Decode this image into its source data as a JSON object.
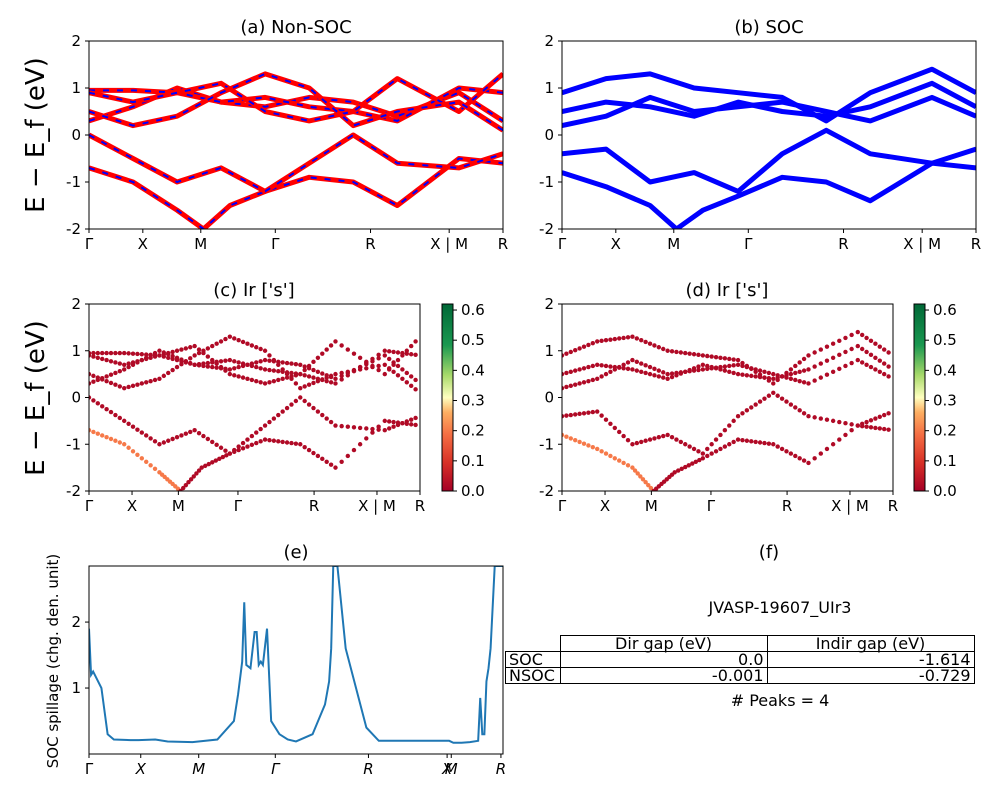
{
  "figure": {
    "panels": [
      {
        "id": "a",
        "title": "(a) Non-SOC",
        "ylabel": "E − E_f (eV)"
      },
      {
        "id": "b",
        "title": "(b) SOC"
      },
      {
        "id": "c",
        "title": "(c)  Ir ['s']",
        "ylabel": "E − E_f (eV)"
      },
      {
        "id": "d",
        "title": "(d) Ir ['s']"
      },
      {
        "id": "e",
        "title": "(e)",
        "ylabel": "SOC spillage (chg. den. unit)"
      },
      {
        "id": "f",
        "title": "(f)"
      }
    ],
    "colors": {
      "nonsoc_band": "#ff0000",
      "nonsoc_dash": "#0000ff",
      "soc_band": "#0000ff",
      "spillage_line": "#1f77b4"
    }
  },
  "chart_data": [
    {
      "type": "line",
      "panel": "a",
      "title": "(a) Non-SOC",
      "ylabel": "E − E_f (eV)",
      "ylim": [
        -2,
        2
      ],
      "yticks": [
        -2,
        -1,
        0,
        1,
        2
      ],
      "kpath_labels": [
        "Γ",
        "X",
        "M",
        "Γ",
        "R",
        "X | M",
        "R"
      ],
      "series": [
        {
          "x": [
            0,
            0.05,
            0.1,
            0.13,
            0.16,
            0.2,
            0.25,
            0.3,
            0.35,
            0.42,
            0.47
          ],
          "values": [
            -0.7,
            -1.0,
            -1.6,
            -2.0,
            -1.5,
            -1.2,
            -0.9,
            -1.0,
            -1.5,
            -0.5,
            -0.6
          ]
        },
        {
          "x": [
            0,
            0.05,
            0.1,
            0.15,
            0.2,
            0.25,
            0.3,
            0.35,
            0.42,
            0.47
          ],
          "values": [
            0.0,
            -0.5,
            -1.0,
            -0.7,
            -1.2,
            -0.6,
            0.0,
            -0.6,
            -0.7,
            -0.4
          ]
        },
        {
          "x": [
            0,
            0.05,
            0.1,
            0.15,
            0.2,
            0.25,
            0.3,
            0.35,
            0.42,
            0.47
          ],
          "values": [
            0.3,
            0.6,
            1.0,
            0.7,
            0.6,
            0.8,
            0.7,
            0.4,
            0.9,
            0.3
          ]
        },
        {
          "x": [
            0,
            0.05,
            0.1,
            0.15,
            0.2,
            0.25,
            0.3,
            0.35,
            0.42,
            0.47
          ],
          "values": [
            0.95,
            0.95,
            0.9,
            0.7,
            0.8,
            0.6,
            0.5,
            0.3,
            1.0,
            0.9
          ]
        },
        {
          "x": [
            0,
            0.05,
            0.1,
            0.15,
            0.2,
            0.25,
            0.3,
            0.35,
            0.42,
            0.47
          ],
          "values": [
            0.9,
            0.7,
            0.9,
            1.1,
            0.5,
            0.3,
            0.5,
            1.2,
            0.5,
            1.3
          ]
        },
        {
          "x": [
            0,
            0.05,
            0.1,
            0.15,
            0.2,
            0.25,
            0.3,
            0.35,
            0.42,
            0.47
          ],
          "values": [
            0.5,
            0.2,
            0.4,
            0.9,
            1.3,
            1.0,
            0.2,
            0.5,
            0.7,
            0.1
          ]
        }
      ]
    },
    {
      "type": "line",
      "panel": "b",
      "title": "(b) SOC",
      "ylim": [
        -2,
        2
      ],
      "yticks": [
        -2,
        -1,
        0,
        1,
        2
      ],
      "kpath_labels": [
        "Γ",
        "X",
        "M",
        "Γ",
        "R",
        "X | M",
        "R"
      ],
      "series": [
        {
          "x": [
            0,
            0.05,
            0.1,
            0.13,
            0.16,
            0.2,
            0.25,
            0.3,
            0.35,
            0.42,
            0.47
          ],
          "values": [
            -0.8,
            -1.1,
            -1.5,
            -2.0,
            -1.6,
            -1.3,
            -0.9,
            -1.0,
            -1.4,
            -0.6,
            -0.7
          ]
        },
        {
          "x": [
            0,
            0.05,
            0.1,
            0.15,
            0.2,
            0.25,
            0.3,
            0.35,
            0.42,
            0.47
          ],
          "values": [
            -0.4,
            -0.3,
            -1.0,
            -0.8,
            -1.2,
            -0.4,
            0.1,
            -0.4,
            -0.6,
            -0.3
          ]
        },
        {
          "x": [
            0,
            0.05,
            0.1,
            0.15,
            0.2,
            0.25,
            0.3,
            0.35,
            0.42,
            0.47
          ],
          "values": [
            0.2,
            0.4,
            0.8,
            0.5,
            0.6,
            0.7,
            0.5,
            0.3,
            0.8,
            0.4
          ]
        },
        {
          "x": [
            0,
            0.05,
            0.1,
            0.15,
            0.2,
            0.25,
            0.3,
            0.35,
            0.42,
            0.47
          ],
          "values": [
            0.5,
            0.7,
            0.6,
            0.4,
            0.7,
            0.5,
            0.4,
            0.6,
            1.1,
            0.6
          ]
        },
        {
          "x": [
            0,
            0.05,
            0.1,
            0.15,
            0.2,
            0.25,
            0.3,
            0.35,
            0.42,
            0.47
          ],
          "values": [
            0.9,
            1.2,
            1.3,
            1.0,
            0.9,
            0.8,
            0.3,
            0.9,
            1.4,
            0.9
          ]
        }
      ]
    },
    {
      "type": "scatter",
      "panel": "c",
      "title": "(c)  Ir ['s']",
      "ylabel": "E − E_f (eV)",
      "ylim": [
        -2,
        2
      ],
      "yticks": [
        -2,
        -1,
        0,
        1,
        2
      ],
      "kpath_labels": [
        "Γ",
        "X",
        "M",
        "Γ",
        "R",
        "X | M",
        "R"
      ],
      "colorbar": {
        "min": 0.0,
        "max": 0.62,
        "ticks": [
          "0.0",
          "0.1",
          "0.2",
          "0.3",
          "0.4",
          "0.5",
          "0.6"
        ]
      },
      "series": [
        {
          "x": [
            0,
            0.05,
            0.1,
            0.13,
            0.16,
            0.2,
            0.25,
            0.3,
            0.35,
            0.42,
            0.47
          ],
          "values": [
            -0.7,
            -1.0,
            -1.6,
            -2.0,
            -1.5,
            -1.2,
            -0.9,
            -1.0,
            -1.5,
            -0.5,
            -0.6
          ]
        },
        {
          "x": [
            0,
            0.05,
            0.1,
            0.15,
            0.2,
            0.25,
            0.3,
            0.35,
            0.42,
            0.47
          ],
          "values": [
            0.0,
            -0.5,
            -1.0,
            -0.7,
            -1.2,
            -0.6,
            0.0,
            -0.6,
            -0.7,
            -0.4
          ]
        },
        {
          "x": [
            0,
            0.05,
            0.1,
            0.15,
            0.2,
            0.25,
            0.3,
            0.35,
            0.42,
            0.47
          ],
          "values": [
            0.3,
            0.6,
            1.0,
            0.7,
            0.6,
            0.8,
            0.7,
            0.4,
            0.9,
            0.3
          ]
        },
        {
          "x": [
            0,
            0.05,
            0.1,
            0.15,
            0.2,
            0.25,
            0.3,
            0.35,
            0.42,
            0.47
          ],
          "values": [
            0.95,
            0.95,
            0.9,
            0.7,
            0.8,
            0.6,
            0.5,
            0.3,
            1.0,
            0.9
          ]
        },
        {
          "x": [
            0,
            0.05,
            0.1,
            0.15,
            0.2,
            0.25,
            0.3,
            0.35,
            0.42,
            0.47
          ],
          "values": [
            0.9,
            0.7,
            0.9,
            1.1,
            0.5,
            0.3,
            0.5,
            1.2,
            0.5,
            1.3
          ]
        },
        {
          "x": [
            0,
            0.05,
            0.1,
            0.15,
            0.2,
            0.25,
            0.3,
            0.35,
            0.42,
            0.47
          ],
          "values": [
            0.5,
            0.2,
            0.4,
            0.9,
            1.3,
            1.0,
            0.2,
            0.5,
            0.7,
            0.1
          ]
        }
      ]
    },
    {
      "type": "scatter",
      "panel": "d",
      "title": "(d) Ir ['s']",
      "ylim": [
        -2,
        2
      ],
      "yticks": [
        -2,
        -1,
        0,
        1,
        2
      ],
      "kpath_labels": [
        "Γ",
        "X",
        "M",
        "Γ",
        "R",
        "X | M",
        "R"
      ],
      "colorbar": {
        "min": 0.0,
        "max": 0.62,
        "ticks": [
          "0.0",
          "0.1",
          "0.2",
          "0.3",
          "0.4",
          "0.5",
          "0.6"
        ]
      },
      "series": [
        {
          "x": [
            0,
            0.05,
            0.1,
            0.13,
            0.16,
            0.2,
            0.25,
            0.3,
            0.35,
            0.42,
            0.47
          ],
          "values": [
            -0.8,
            -1.1,
            -1.5,
            -2.0,
            -1.6,
            -1.3,
            -0.9,
            -1.0,
            -1.4,
            -0.6,
            -0.7
          ]
        },
        {
          "x": [
            0,
            0.05,
            0.1,
            0.15,
            0.2,
            0.25,
            0.3,
            0.35,
            0.42,
            0.47
          ],
          "values": [
            -0.4,
            -0.3,
            -1.0,
            -0.8,
            -1.2,
            -0.4,
            0.1,
            -0.4,
            -0.6,
            -0.3
          ]
        },
        {
          "x": [
            0,
            0.05,
            0.1,
            0.15,
            0.2,
            0.25,
            0.3,
            0.35,
            0.42,
            0.47
          ],
          "values": [
            0.2,
            0.4,
            0.8,
            0.5,
            0.6,
            0.7,
            0.5,
            0.3,
            0.8,
            0.4
          ]
        },
        {
          "x": [
            0,
            0.05,
            0.1,
            0.15,
            0.2,
            0.25,
            0.3,
            0.35,
            0.42,
            0.47
          ],
          "values": [
            0.5,
            0.7,
            0.6,
            0.4,
            0.7,
            0.5,
            0.4,
            0.6,
            1.1,
            0.6
          ]
        },
        {
          "x": [
            0,
            0.05,
            0.1,
            0.15,
            0.2,
            0.25,
            0.3,
            0.35,
            0.42,
            0.47
          ],
          "values": [
            0.9,
            1.2,
            1.3,
            1.0,
            0.9,
            0.8,
            0.3,
            0.9,
            1.4,
            0.9
          ]
        }
      ]
    },
    {
      "type": "line",
      "panel": "e",
      "title": "(e)",
      "ylabel": "SOC spillage (chg. den. unit)",
      "ylim": [
        0,
        2.85
      ],
      "yticks": [
        1,
        2
      ],
      "kpath_labels": [
        "Γ",
        "X",
        "M",
        "Γ",
        "R",
        "X",
        "M",
        "R"
      ],
      "series": [
        {
          "x": [
            0,
            0.005,
            0.01,
            0.03,
            0.045,
            0.06,
            0.1,
            0.12,
            0.16,
            0.19,
            0.25,
            0.31,
            0.35,
            0.36,
            0.37,
            0.375,
            0.38,
            0.39,
            0.4,
            0.405,
            0.41,
            0.415,
            0.42,
            0.43,
            0.44,
            0.46,
            0.48,
            0.5,
            0.54,
            0.56,
            0.57,
            0.58,
            0.585,
            0.59,
            0.595,
            0.6,
            0.62,
            0.67,
            0.7,
            0.73,
            0.87,
            0.88,
            0.9,
            0.92,
            0.94,
            0.945,
            0.95,
            0.955,
            0.96,
            0.965,
            0.97,
            0.98,
            0.99,
            1.0
          ],
          "values": [
            1.9,
            1.2,
            1.25,
            1.0,
            0.3,
            0.22,
            0.21,
            0.21,
            0.22,
            0.19,
            0.18,
            0.22,
            0.5,
            0.9,
            1.4,
            2.3,
            1.35,
            1.3,
            1.85,
            1.85,
            1.35,
            1.4,
            1.35,
            1.9,
            0.5,
            0.3,
            0.22,
            0.19,
            0.3,
            0.6,
            0.75,
            1.1,
            1.6,
            2.85,
            2.85,
            2.85,
            1.6,
            0.4,
            0.2,
            0.2,
            0.2,
            0.17,
            0.17,
            0.18,
            0.2,
            0.85,
            0.3,
            0.3,
            1.1,
            1.3,
            1.6,
            2.85,
            2.85,
            2.85
          ]
        }
      ]
    }
  ],
  "info": {
    "material": "JVASP-19607_UIr3",
    "table_headers": [
      "Dir gap (eV)",
      "Indir gap (eV)"
    ],
    "table_rows": [
      {
        "label": "SOC",
        "dir": "0.0",
        "indir": "-1.614"
      },
      {
        "label": "NSOC",
        "dir": "-0.001",
        "indir": "-0.729"
      }
    ],
    "peaks": "# Peaks = 4"
  }
}
